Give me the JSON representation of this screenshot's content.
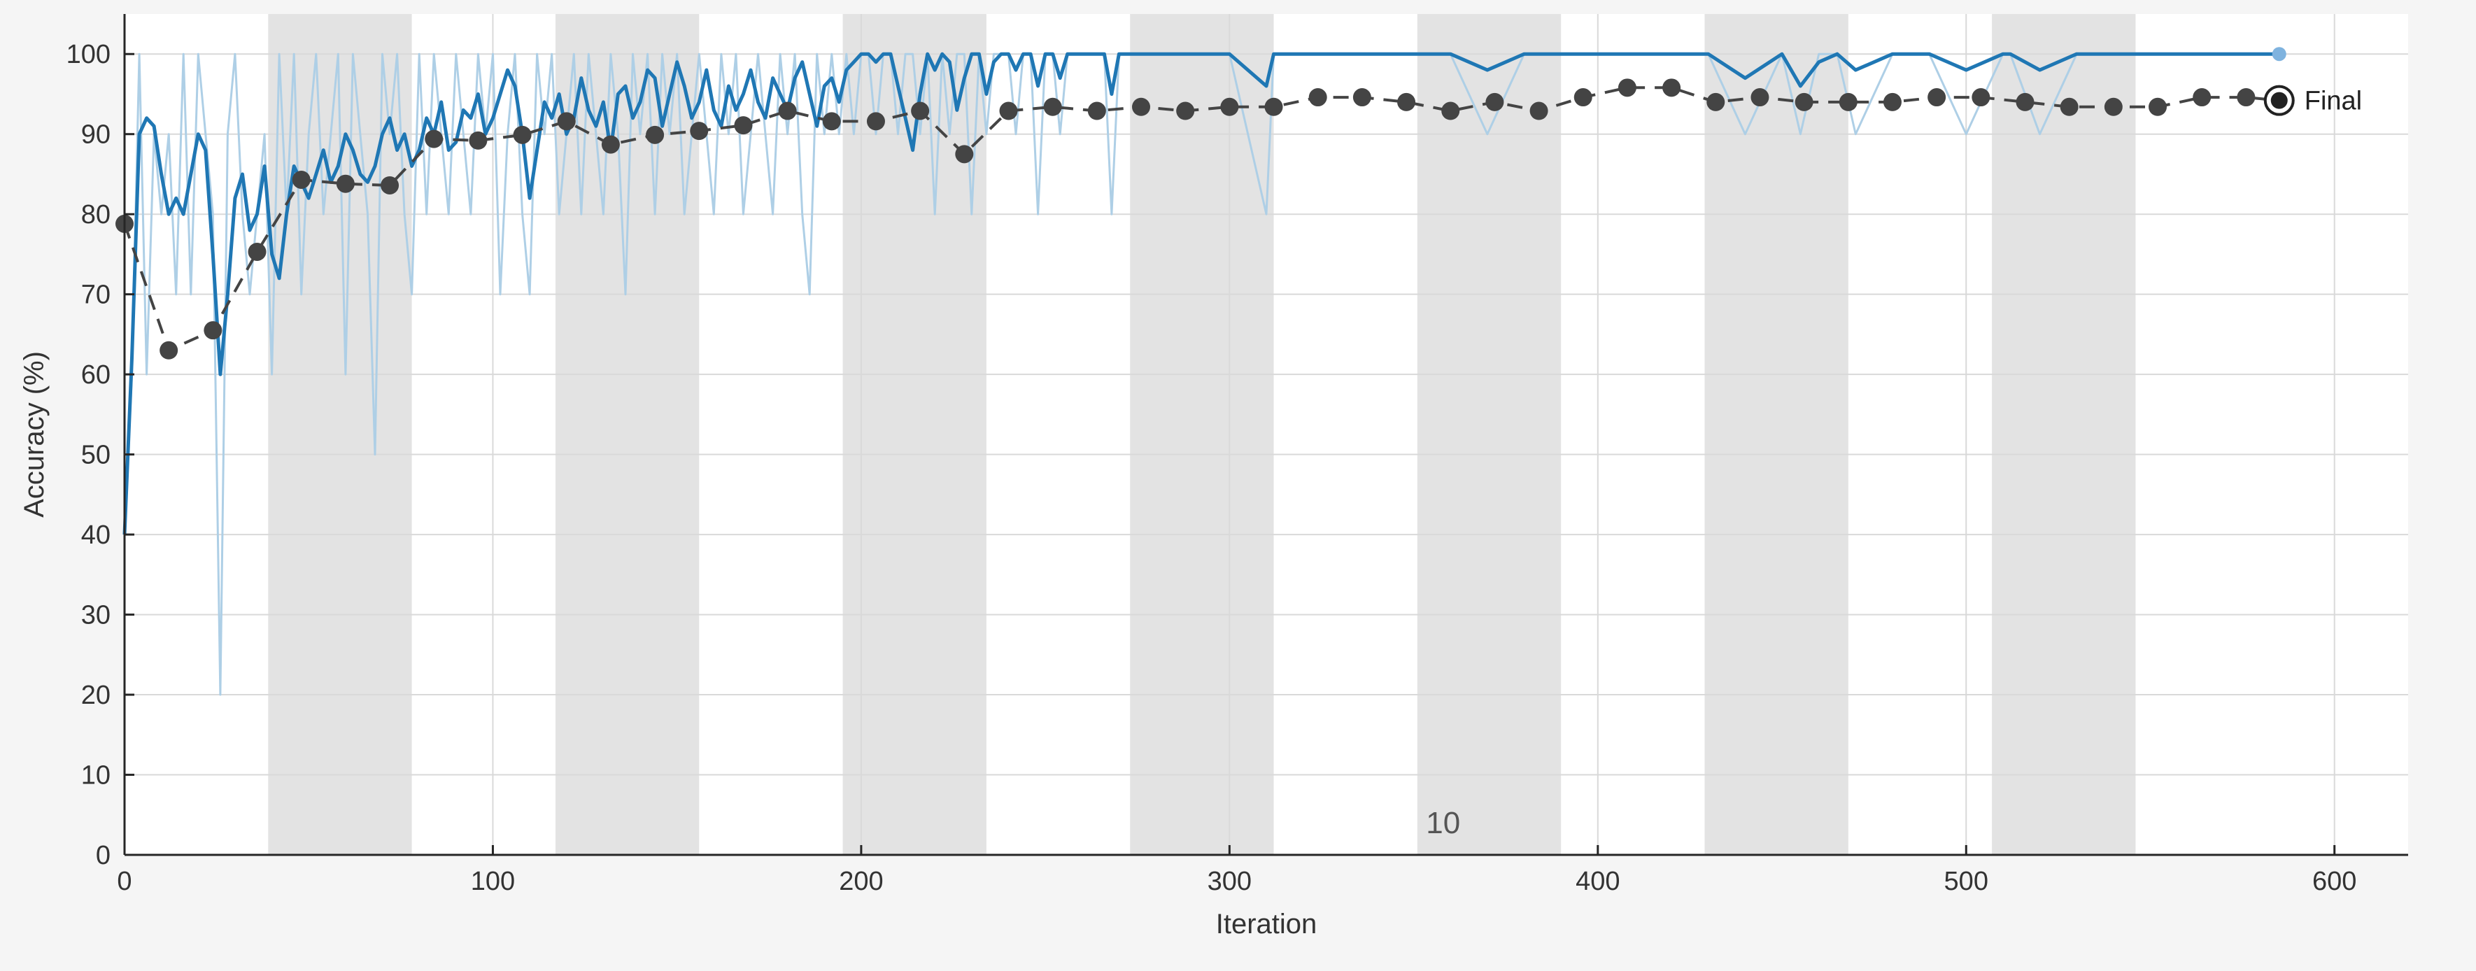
{
  "chart_data": {
    "type": "line",
    "title": "",
    "xlabel": "Iteration",
    "ylabel": "Accuracy (%)",
    "xlim": [
      0,
      620
    ],
    "ylim": [
      0,
      105
    ],
    "x_ticks": [
      0,
      100,
      200,
      300,
      400,
      500,
      600
    ],
    "y_ticks": [
      0,
      10,
      20,
      30,
      40,
      50,
      60,
      70,
      80,
      90,
      100
    ],
    "grid": true,
    "epoch_bands": [
      [
        39,
        78
      ],
      [
        117,
        156
      ],
      [
        195,
        234
      ],
      [
        273,
        312
      ],
      [
        351,
        390
      ],
      [
        429,
        468
      ],
      [
        507,
        546
      ]
    ],
    "epoch_label": {
      "text": "10",
      "x": 358,
      "y": 4
    },
    "colors": {
      "raw": "#aecfe6",
      "smoothed": "#1f77b4",
      "validation": "#444444",
      "band": "#e3e3e3",
      "grid": "#d9d9d9"
    },
    "series": [
      {
        "key": "raw_training",
        "x": [
          0,
          2,
          4,
          6,
          8,
          10,
          12,
          14,
          16,
          18,
          20,
          22,
          24,
          26,
          28,
          30,
          32,
          34,
          36,
          38,
          40,
          42,
          44,
          46,
          48,
          50,
          52,
          54,
          56,
          58,
          60,
          62,
          64,
          66,
          68,
          70,
          72,
          74,
          76,
          78,
          80,
          82,
          84,
          86,
          88,
          90,
          92,
          94,
          96,
          98,
          100,
          102,
          104,
          106,
          108,
          110,
          112,
          114,
          116,
          118,
          120,
          122,
          124,
          126,
          128,
          130,
          132,
          134,
          136,
          138,
          140,
          142,
          144,
          146,
          148,
          150,
          152,
          154,
          156,
          158,
          160,
          162,
          164,
          166,
          168,
          170,
          172,
          174,
          176,
          178,
          180,
          182,
          184,
          186,
          188,
          190,
          192,
          194,
          196,
          198,
          200,
          202,
          204,
          206,
          208,
          210,
          212,
          214,
          216,
          218,
          220,
          222,
          224,
          226,
          228,
          230,
          232,
          234,
          236,
          238,
          240,
          242,
          244,
          246,
          248,
          250,
          252,
          254,
          256,
          258,
          260,
          262,
          264,
          266,
          268,
          270,
          280,
          290,
          300,
          310,
          312,
          320,
          330,
          340,
          350,
          360,
          370,
          380,
          390,
          400,
          410,
          420,
          430,
          440,
          450,
          455,
          460,
          465,
          470,
          480,
          490,
          500,
          510,
          512,
          520,
          530,
          540,
          550,
          560,
          570,
          580,
          585
        ],
        "values": [
          40,
          60,
          100,
          60,
          90,
          80,
          90,
          70,
          100,
          70,
          100,
          90,
          80,
          20,
          90,
          100,
          80,
          70,
          80,
          90,
          60,
          100,
          80,
          100,
          70,
          90,
          100,
          80,
          90,
          100,
          60,
          100,
          90,
          80,
          50,
          100,
          90,
          100,
          80,
          70,
          100,
          80,
          100,
          90,
          80,
          100,
          90,
          80,
          100,
          90,
          100,
          70,
          90,
          100,
          80,
          70,
          100,
          90,
          100,
          80,
          90,
          100,
          80,
          100,
          90,
          80,
          100,
          90,
          70,
          100,
          90,
          100,
          80,
          100,
          90,
          100,
          80,
          90,
          100,
          90,
          80,
          100,
          90,
          100,
          80,
          90,
          100,
          90,
          80,
          100,
          90,
          100,
          80,
          70,
          100,
          90,
          100,
          90,
          100,
          90,
          100,
          100,
          90,
          100,
          100,
          90,
          100,
          100,
          90,
          100,
          80,
          100,
          90,
          100,
          100,
          80,
          100,
          90,
          100,
          100,
          100,
          90,
          100,
          100,
          80,
          100,
          100,
          90,
          100,
          100,
          100,
          100,
          100,
          100,
          80,
          100,
          100,
          100,
          100,
          80,
          100,
          100,
          100,
          100,
          100,
          100,
          90,
          100,
          100,
          100,
          100,
          100,
          100,
          90,
          100,
          90,
          100,
          100,
          90,
          100,
          100,
          90,
          100,
          100,
          90,
          100,
          100,
          100,
          100,
          100,
          100,
          100
        ]
      },
      {
        "key": "smoothed_training",
        "x": [
          0,
          2,
          4,
          6,
          8,
          10,
          12,
          14,
          16,
          18,
          20,
          22,
          24,
          26,
          28,
          30,
          32,
          34,
          36,
          38,
          40,
          42,
          44,
          46,
          48,
          50,
          52,
          54,
          56,
          58,
          60,
          62,
          64,
          66,
          68,
          70,
          72,
          74,
          76,
          78,
          80,
          82,
          84,
          86,
          88,
          90,
          92,
          94,
          96,
          98,
          100,
          102,
          104,
          106,
          108,
          110,
          112,
          114,
          116,
          118,
          120,
          122,
          124,
          126,
          128,
          130,
          132,
          134,
          136,
          138,
          140,
          142,
          144,
          146,
          148,
          150,
          152,
          154,
          156,
          158,
          160,
          162,
          164,
          166,
          168,
          170,
          172,
          174,
          176,
          178,
          180,
          182,
          184,
          186,
          188,
          190,
          192,
          194,
          196,
          198,
          200,
          202,
          204,
          206,
          208,
          210,
          212,
          214,
          216,
          218,
          220,
          222,
          224,
          226,
          228,
          230,
          232,
          234,
          236,
          238,
          240,
          242,
          244,
          246,
          248,
          250,
          252,
          254,
          256,
          258,
          260,
          262,
          264,
          266,
          268,
          270,
          280,
          290,
          300,
          310,
          312,
          320,
          330,
          340,
          350,
          360,
          370,
          380,
          390,
          400,
          410,
          420,
          430,
          440,
          450,
          455,
          460,
          465,
          470,
          480,
          490,
          500,
          510,
          512,
          520,
          530,
          540,
          550,
          560,
          570,
          580,
          585
        ],
        "values": [
          40,
          62,
          90,
          92,
          91,
          85,
          80,
          82,
          80,
          85,
          90,
          88,
          75,
          60,
          70,
          82,
          85,
          78,
          80,
          86,
          75,
          72,
          80,
          86,
          84,
          82,
          85,
          88,
          84,
          86,
          90,
          88,
          85,
          84,
          86,
          90,
          92,
          88,
          90,
          86,
          88,
          92,
          90,
          94,
          88,
          89,
          93,
          92,
          95,
          90,
          92,
          95,
          98,
          96,
          90,
          82,
          88,
          94,
          92,
          95,
          90,
          92,
          97,
          93,
          91,
          94,
          88,
          95,
          96,
          92,
          94,
          98,
          97,
          91,
          95,
          99,
          96,
          92,
          94,
          98,
          93,
          91,
          96,
          93,
          95,
          98,
          94,
          92,
          97,
          95,
          93,
          97,
          99,
          95,
          91,
          96,
          97,
          94,
          98,
          99,
          100,
          100,
          99,
          100,
          100,
          96,
          92,
          88,
          95,
          100,
          98,
          100,
          99,
          93,
          97,
          100,
          100,
          95,
          99,
          100,
          100,
          98,
          100,
          100,
          96,
          100,
          100,
          97,
          100,
          100,
          100,
          100,
          100,
          100,
          95,
          100,
          100,
          100,
          100,
          96,
          100,
          100,
          100,
          100,
          100,
          100,
          98,
          100,
          100,
          100,
          100,
          100,
          100,
          97,
          100,
          96,
          99,
          100,
          98,
          100,
          100,
          98,
          100,
          100,
          98,
          100,
          100,
          100,
          100,
          100,
          100,
          100
        ]
      },
      {
        "key": "validation",
        "x": [
          0,
          12,
          24,
          36,
          48,
          60,
          72,
          84,
          96,
          108,
          120,
          132,
          144,
          156,
          168,
          180,
          192,
          204,
          216,
          228,
          240,
          252,
          264,
          276,
          288,
          300,
          312,
          324,
          336,
          348,
          360,
          372,
          384,
          396,
          408,
          420,
          432,
          444,
          456,
          468,
          480,
          492,
          504,
          516,
          528,
          540,
          552,
          564,
          576,
          585
        ],
        "values": [
          78.8,
          63,
          65.5,
          75.3,
          84.3,
          83.8,
          83.6,
          89.4,
          89.2,
          89.9,
          91.6,
          88.7,
          89.9,
          90.4,
          91.1,
          92.9,
          91.6,
          91.6,
          92.9,
          87.5,
          92.9,
          93.4,
          92.9,
          93.4,
          92.9,
          93.4,
          93.4,
          94.6,
          94.6,
          94,
          92.9,
          94,
          92.9,
          94.6,
          95.8,
          95.8,
          94,
          94.6,
          94,
          94,
          94,
          94.6,
          94.6,
          94,
          93.4,
          93.4,
          93.4,
          94.6,
          94.6,
          94.2
        ]
      }
    ],
    "final_label": "Final"
  }
}
